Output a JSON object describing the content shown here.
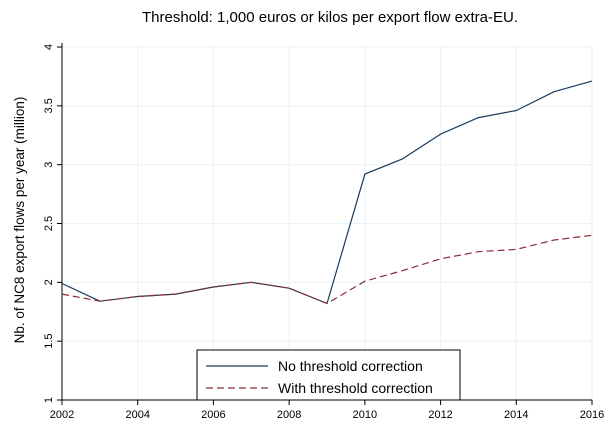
{
  "chart_data": {
    "type": "line",
    "title": "Threshold: 1,000 euros or kilos per export flow extra-EU.",
    "xlabel": "",
    "ylabel": "Nb. of NC8 export flows per year (million)",
    "x": [
      2002,
      2003,
      2004,
      2005,
      2006,
      2007,
      2008,
      2009,
      2010,
      2011,
      2012,
      2013,
      2014,
      2015,
      2016
    ],
    "xticks": [
      "2002",
      "2004",
      "2006",
      "2008",
      "2010",
      "2012",
      "2014",
      "2016"
    ],
    "yticks": [
      "1",
      "1.5",
      "2",
      "2.5",
      "3",
      "3.5",
      "4"
    ],
    "xlim": [
      2002,
      2016
    ],
    "ylim": [
      1,
      4
    ],
    "grid": true,
    "legend_position": "bottom-center",
    "series": [
      {
        "name": "No threshold correction",
        "color": "#1a3a5c",
        "style": "solid",
        "values": [
          1.99,
          1.84,
          1.88,
          1.9,
          1.96,
          2.0,
          1.95,
          1.82,
          2.92,
          3.05,
          3.26,
          3.4,
          3.46,
          3.62,
          3.71
        ]
      },
      {
        "name": "With threshold correction",
        "color": "#8b2e36",
        "style": "dashed",
        "values": [
          1.9,
          1.84,
          1.88,
          1.9,
          1.96,
          2.0,
          1.95,
          1.82,
          2.01,
          2.1,
          2.2,
          2.26,
          2.28,
          2.36,
          2.4
        ]
      }
    ]
  }
}
